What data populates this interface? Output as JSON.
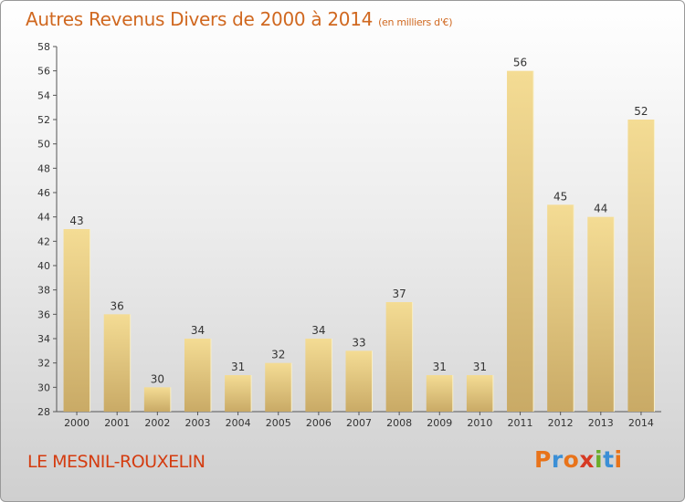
{
  "header": {
    "title": "Autres Revenus Divers de 2000 à 2014",
    "unit": "(en milliers d'€)"
  },
  "footer": {
    "location": "LE MESNIL-ROUXELIN",
    "logo_text": "Proxiti",
    "logo_colors": [
      "#e8731a",
      "#3b8fd6",
      "#e8731a",
      "#d63a24",
      "#6aad2a",
      "#3b8fd6",
      "#e8731a"
    ]
  },
  "chart_data": {
    "type": "bar",
    "title": "Autres Revenus Divers de 2000 à 2014",
    "subtitle": "(en milliers d'€)",
    "categories": [
      "2000",
      "2001",
      "2002",
      "2003",
      "2004",
      "2005",
      "2006",
      "2007",
      "2008",
      "2009",
      "2010",
      "2011",
      "2012",
      "2013",
      "2014"
    ],
    "values": [
      43,
      36,
      30,
      34,
      31,
      32,
      34,
      33,
      37,
      31,
      31,
      56,
      45,
      44,
      52
    ],
    "ylim": [
      28,
      58
    ],
    "yticks": [
      28,
      30,
      32,
      34,
      36,
      38,
      40,
      42,
      44,
      46,
      48,
      50,
      52,
      54,
      56,
      58
    ],
    "grid": false,
    "bar_color": "#f0d890",
    "bar_shadow": "#c8a860"
  }
}
